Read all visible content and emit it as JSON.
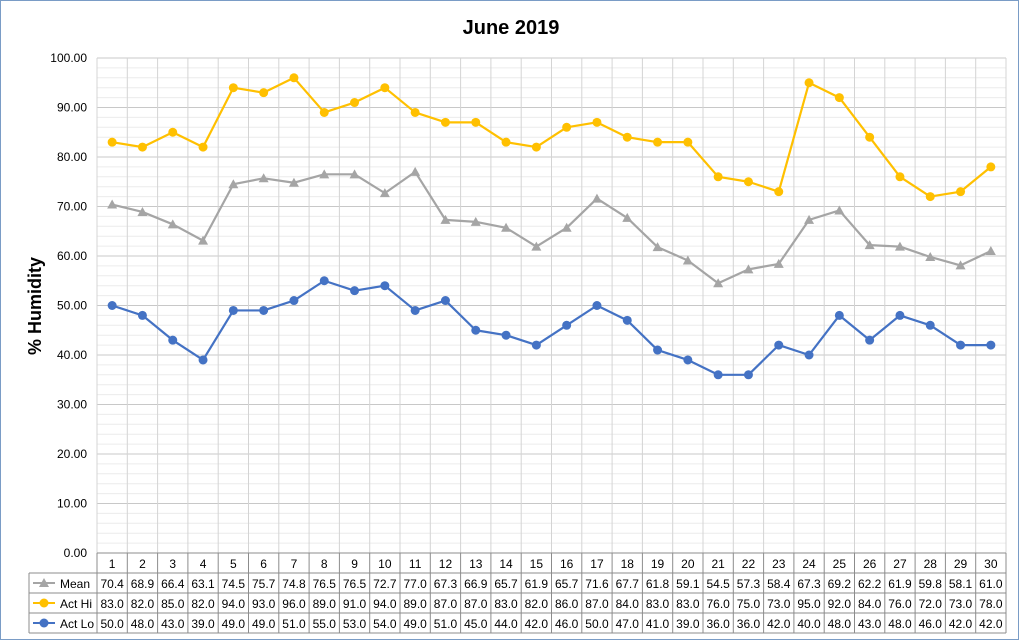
{
  "chart_data": {
    "type": "line",
    "title": "June 2019",
    "xlabel": "",
    "ylabel": "% Humidity",
    "ylim": [
      0,
      100
    ],
    "yticks": [
      "0.00",
      "10.00",
      "20.00",
      "30.00",
      "40.00",
      "50.00",
      "60.00",
      "70.00",
      "80.00",
      "90.00",
      "100.00"
    ],
    "grid": true,
    "legend": "data-table-left",
    "categories": [
      1,
      2,
      3,
      4,
      5,
      6,
      7,
      8,
      9,
      10,
      11,
      12,
      13,
      14,
      15,
      16,
      17,
      18,
      19,
      20,
      21,
      22,
      23,
      24,
      25,
      26,
      27,
      28,
      29,
      30
    ],
    "series": [
      {
        "name": "Mean",
        "color": "#a5a5a5",
        "marker": "triangle",
        "values": [
          70.4,
          68.9,
          66.4,
          63.1,
          74.5,
          75.7,
          74.8,
          76.5,
          76.5,
          72.7,
          77.0,
          67.3,
          66.9,
          65.7,
          61.9,
          65.7,
          71.6,
          67.7,
          61.8,
          59.1,
          54.5,
          57.3,
          58.4,
          67.3,
          69.2,
          62.2,
          61.9,
          59.8,
          58.1,
          61.0
        ],
        "labels": [
          "70.4",
          "68.9",
          "66.4",
          "63.1",
          "74.5",
          "75.7",
          "74.8",
          "76.5",
          "76.5",
          "72.7",
          "77.0",
          "67.3",
          "66.9",
          "65.7",
          "61.9",
          "65.7",
          "71.6",
          "67.7",
          "61.8",
          "59.1",
          "54.5",
          "57.3",
          "58.4",
          "67.3",
          "69.2",
          "62.2",
          "61.9",
          "59.8",
          "58.1",
          "61.0"
        ]
      },
      {
        "name": "Act Hi",
        "color": "#ffc000",
        "marker": "circle",
        "values": [
          83,
          82,
          85,
          82,
          94,
          93,
          96,
          89,
          91,
          94,
          89,
          87,
          87,
          83,
          82,
          86,
          87,
          84,
          83,
          83,
          76,
          75,
          73,
          95,
          92,
          84,
          76,
          72,
          73,
          78
        ],
        "labels": [
          "83.0",
          "82.0",
          "85.0",
          "82.0",
          "94.0",
          "93.0",
          "96.0",
          "89.0",
          "91.0",
          "94.0",
          "89.0",
          "87.0",
          "87.0",
          "83.0",
          "82.0",
          "86.0",
          "87.0",
          "84.0",
          "83.0",
          "83.0",
          "76.0",
          "75.0",
          "73.0",
          "95.0",
          "92.0",
          "84.0",
          "76.0",
          "72.0",
          "73.0",
          "78.0"
        ]
      },
      {
        "name": "Act Lo",
        "color": "#4472c4",
        "marker": "circle",
        "values": [
          50,
          48,
          43,
          39,
          49,
          49,
          51,
          55,
          53,
          54,
          49,
          51,
          45,
          44,
          42,
          46,
          50,
          47,
          41,
          39,
          36,
          36,
          42,
          40,
          48,
          43,
          48,
          46,
          42,
          42
        ],
        "labels": [
          "50.0",
          "48.0",
          "43.0",
          "39.0",
          "49.0",
          "49.0",
          "51.0",
          "55.0",
          "53.0",
          "54.0",
          "49.0",
          "51.0",
          "45.0",
          "44.0",
          "42.0",
          "46.0",
          "50.0",
          "47.0",
          "41.0",
          "39.0",
          "36.0",
          "36.0",
          "42.0",
          "40.0",
          "48.0",
          "43.0",
          "48.0",
          "46.0",
          "42.0",
          "42.0"
        ]
      }
    ]
  }
}
